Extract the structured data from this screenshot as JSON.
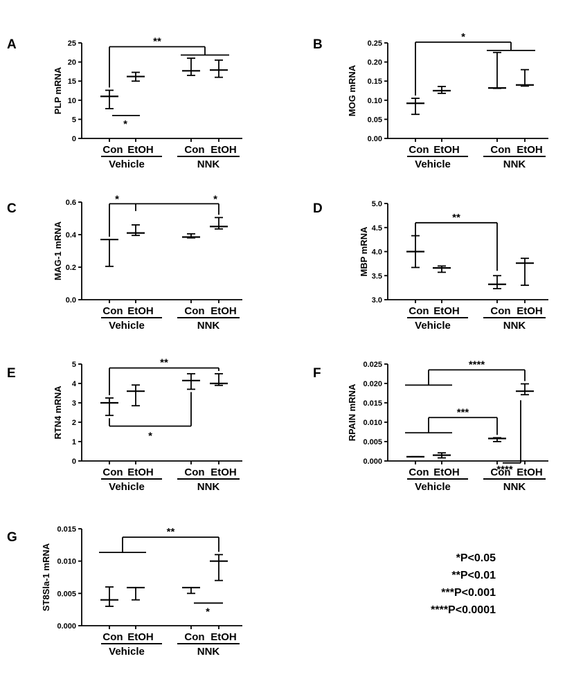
{
  "groups": {
    "row1": [
      "Con",
      "EtOH",
      "Con",
      "EtOH"
    ],
    "row2": [
      "Vehicle",
      "NNK"
    ]
  },
  "p_key": [
    "*P<0.05",
    "**P<0.01",
    "***P<0.001",
    "****P<0.0001"
  ],
  "chart_data": [
    {
      "type": "scatter",
      "panel": "A",
      "ylabel": "PLP mRNA",
      "ylim": [
        0,
        25
      ],
      "yticks": [
        "0",
        "5",
        "10",
        "15",
        "20",
        "25"
      ],
      "categories": [
        "Con Vehicle",
        "EtOH Vehicle",
        "Con NNK",
        "EtOH NNK"
      ],
      "mean": [
        11.0,
        16.2,
        17.7,
        17.9
      ],
      "lower": [
        7.8,
        15.0,
        16.5,
        16.0
      ],
      "upper": [
        12.6,
        17.3,
        21.0,
        20.5
      ],
      "annotations": [
        {
          "type": "bracket",
          "from": 0,
          "to": [
            2,
            3
          ],
          "at": 24,
          "label": "**"
        },
        {
          "type": "underline",
          "from": 0,
          "to": 1,
          "at": 6,
          "label": "*"
        }
      ]
    },
    {
      "type": "scatter",
      "panel": "B",
      "ylabel": "MOG mRNA",
      "ylim": [
        0,
        0.25
      ],
      "yticks": [
        "0.00",
        "0.05",
        "0.10",
        "0.15",
        "0.20",
        "0.25"
      ],
      "categories": [
        "Con Vehicle",
        "EtOH Vehicle",
        "Con NNK",
        "EtOH NNK"
      ],
      "mean": [
        0.092,
        0.125,
        0.132,
        0.14
      ],
      "lower": [
        0.063,
        0.118,
        0.131,
        0.137
      ],
      "upper": [
        0.105,
        0.136,
        0.225,
        0.18
      ],
      "annotations": [
        {
          "type": "bracket",
          "from": 0,
          "to": [
            2,
            3
          ],
          "at": 0.252,
          "label": "*"
        }
      ]
    },
    {
      "type": "scatter",
      "panel": "C",
      "ylabel": "MAG-1 mRNA",
      "ylim": [
        0,
        0.6
      ],
      "yticks": [
        "0.0",
        "0.2",
        "0.4",
        "0.6"
      ],
      "categories": [
        "Con Vehicle",
        "EtOH Vehicle",
        "Con NNK",
        "EtOH NNK"
      ],
      "mean": [
        0.37,
        0.41,
        0.385,
        0.45
      ],
      "lower": [
        0.205,
        0.395,
        0.38,
        0.435
      ],
      "upper": [
        0.37,
        0.46,
        0.405,
        0.505
      ],
      "annotations": [
        {
          "type": "bracket",
          "from": 0,
          "to": [
            3
          ],
          "at": 0.59,
          "label": "*",
          "label2": "*",
          "tick": 1,
          "tick_to": 0.545
        }
      ]
    },
    {
      "type": "scatter",
      "panel": "D",
      "ylabel": "MBP mRNA",
      "ylim": [
        3.0,
        5.0
      ],
      "yticks": [
        "3.0",
        "3.5",
        "4.0",
        "4.5",
        "5.0"
      ],
      "categories": [
        "Con Vehicle",
        "EtOH Vehicle",
        "Con NNK",
        "EtOH NNK"
      ],
      "mean": [
        4.0,
        3.66,
        3.32,
        3.76
      ],
      "lower": [
        3.67,
        3.57,
        3.23,
        3.3
      ],
      "upper": [
        4.33,
        3.7,
        3.5,
        3.86
      ],
      "annotations": [
        {
          "type": "bracket",
          "from": 0,
          "to": [
            2
          ],
          "at": 4.6,
          "label": "**",
          "drop_to": 3.6
        }
      ]
    },
    {
      "type": "scatter",
      "panel": "E",
      "ylabel": "RTN4 mRNA",
      "ylim": [
        0,
        5
      ],
      "yticks": [
        "0",
        "1",
        "2",
        "3",
        "4",
        "5"
      ],
      "categories": [
        "Con Vehicle",
        "EtOH Vehicle",
        "Con NNK",
        "EtOH NNK"
      ],
      "mean": [
        3.0,
        3.6,
        4.15,
        4.0
      ],
      "lower": [
        2.35,
        2.85,
        3.7,
        3.9
      ],
      "upper": [
        3.25,
        3.92,
        4.5,
        4.5
      ],
      "annotations": [
        {
          "type": "bracket",
          "from": 0,
          "to": [
            3
          ],
          "at": 4.8,
          "label": "**"
        },
        {
          "type": "bracket_below",
          "from": 0,
          "to": 2,
          "at": 1.8,
          "label": "*"
        }
      ]
    },
    {
      "type": "scatter",
      "panel": "F",
      "ylabel": "RPAIN mRNA",
      "ylim": [
        0,
        0.025
      ],
      "yticks": [
        "0.000",
        "0.005",
        "0.010",
        "0.015",
        "0.020",
        "0.025"
      ],
      "categories": [
        "Con Vehicle",
        "EtOH Vehicle",
        "Con NNK",
        "EtOH NNK"
      ],
      "mean": [
        0.0011,
        0.0015,
        0.0058,
        0.018
      ],
      "lower": [
        0.0011,
        0.0008,
        0.005,
        0.0171
      ],
      "upper": [
        0.0011,
        0.0021,
        0.006,
        0.0199
      ],
      "annotations": [
        {
          "type": "bracket",
          "from": [
            0,
            1
          ],
          "to": [
            3
          ],
          "at": 0.0235,
          "label": "****"
        },
        {
          "type": "bracket",
          "from": [
            0,
            1
          ],
          "to": [
            2
          ],
          "at": 0.0112,
          "label": "***"
        },
        {
          "type": "bracket_below",
          "from": 2,
          "to": 3,
          "at": -0.0005,
          "label": "****"
        }
      ]
    },
    {
      "type": "scatter",
      "panel": "G",
      "ylabel": "ST8Sla-1 mRNA",
      "ylim": [
        0,
        0.015
      ],
      "yticks": [
        "0.000",
        "0.005",
        "0.010",
        "0.015"
      ],
      "categories": [
        "Con Vehicle",
        "EtOH Vehicle",
        "Con NNK",
        "EtOH NNK"
      ],
      "mean": [
        0.004,
        0.0059,
        0.0059,
        0.01
      ],
      "lower": [
        0.003,
        0.004,
        0.005,
        0.007
      ],
      "upper": [
        0.006,
        0.0059,
        0.0059,
        0.011
      ],
      "annotations": [
        {
          "type": "bracket",
          "from": [
            0,
            1
          ],
          "to": [
            3
          ],
          "at": 0.0137,
          "label": "**"
        },
        {
          "type": "underline",
          "from": 2,
          "to": 3,
          "at": 0.0035,
          "label": "*"
        }
      ]
    }
  ]
}
